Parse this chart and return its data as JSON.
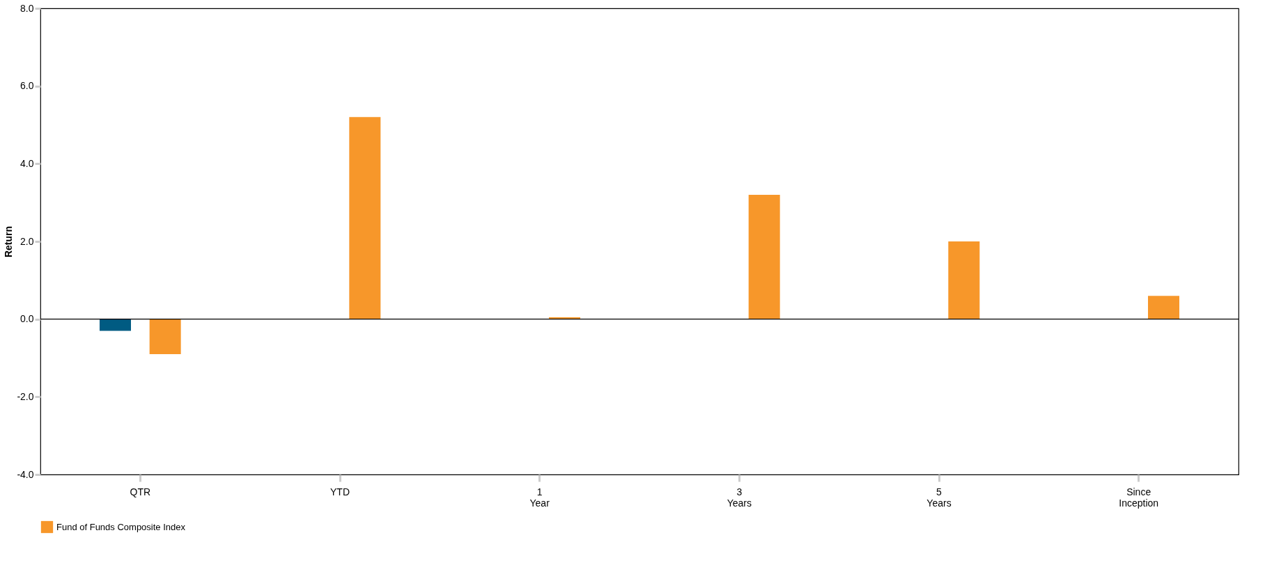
{
  "chart_data": {
    "type": "bar",
    "ylabel": "Return",
    "categories": [
      "QTR",
      "YTD",
      "1 Year",
      "3 Years",
      "5 Years",
      "Since Inception"
    ],
    "series": [
      {
        "color": "#005b82",
        "values": [
          -0.3,
          null,
          null,
          null,
          null,
          null
        ]
      },
      {
        "name": "Fund of Funds Composite Index",
        "color": "#f7972a",
        "values": [
          -0.9,
          5.2,
          0.05,
          3.2,
          2.0,
          0.6
        ]
      }
    ],
    "ylim": [
      -4,
      8
    ],
    "yticks": [
      {
        "value": -4,
        "label": "-4.0"
      },
      {
        "value": -2,
        "label": "-2.0"
      },
      {
        "value": 0,
        "label": "0.0"
      },
      {
        "value": 2,
        "label": "2.0"
      },
      {
        "value": 4,
        "label": "4.0"
      },
      {
        "value": 6,
        "label": "6.0"
      },
      {
        "value": 8,
        "label": "8.0"
      }
    ],
    "ref_lines": [
      {
        "axis": "y",
        "value": 0,
        "color": "#000000"
      }
    ],
    "grid": false,
    "legend": "bottom"
  }
}
